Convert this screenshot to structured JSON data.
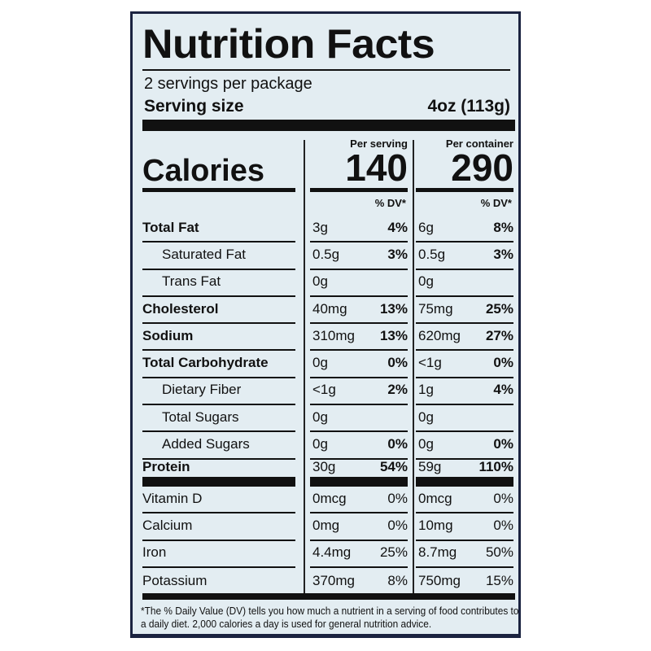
{
  "title": "Nutrition Facts",
  "servings_per_package": "2 servings per package",
  "serving_size_label": "Serving size",
  "serving_size_value": "4oz (113g)",
  "calories_label": "Calories",
  "per_serving_label": "Per serving",
  "per_container_label": "Per container",
  "calories_per_serving": "140",
  "calories_per_container": "290",
  "dv_header": "% DV*",
  "nutrients": [
    {
      "name": "Total Fat",
      "bold": true,
      "indent": false,
      "s_amt": "3g",
      "s_dv": "4%",
      "c_amt": "6g",
      "c_dv": "8%"
    },
    {
      "name": "Saturated Fat",
      "bold": false,
      "indent": true,
      "s_amt": "0.5g",
      "s_dv": "3%",
      "c_amt": "0.5g",
      "c_dv": "3%"
    },
    {
      "name": "Trans Fat",
      "bold": false,
      "indent": true,
      "s_amt": "0g",
      "s_dv": "",
      "c_amt": "0g",
      "c_dv": ""
    },
    {
      "name": "Cholesterol",
      "bold": true,
      "indent": false,
      "s_amt": "40mg",
      "s_dv": "13%",
      "c_amt": "75mg",
      "c_dv": "25%"
    },
    {
      "name": "Sodium",
      "bold": true,
      "indent": false,
      "s_amt": "310mg",
      "s_dv": "13%",
      "c_amt": "620mg",
      "c_dv": "27%"
    },
    {
      "name": "Total Carbohydrate",
      "bold": true,
      "indent": false,
      "s_amt": "0g",
      "s_dv": "0%",
      "c_amt": "<1g",
      "c_dv": "0%"
    },
    {
      "name": "Dietary Fiber",
      "bold": false,
      "indent": true,
      "s_amt": "<1g",
      "s_dv": "2%",
      "c_amt": "1g",
      "c_dv": "4%"
    },
    {
      "name": "Total Sugars",
      "bold": false,
      "indent": true,
      "s_amt": "0g",
      "s_dv": "",
      "c_amt": "0g",
      "c_dv": ""
    },
    {
      "name": "Added Sugars",
      "bold": false,
      "indent": true,
      "s_amt": "0g",
      "s_dv": "0%",
      "c_amt": "0g",
      "c_dv": "0%"
    },
    {
      "name": "Protein",
      "bold": true,
      "indent": false,
      "thick": true,
      "s_amt": "30g",
      "s_dv": "54%",
      "c_amt": "59g",
      "c_dv": "110%"
    }
  ],
  "vitamins": [
    {
      "name": "Vitamin D",
      "s_amt": "0mcg",
      "s_dv": "0%",
      "c_amt": "0mcg",
      "c_dv": "0%"
    },
    {
      "name": "Calcium",
      "s_amt": "0mg",
      "s_dv": "0%",
      "c_amt": "10mg",
      "c_dv": "0%"
    },
    {
      "name": "Iron",
      "s_amt": "4.4mg",
      "s_dv": "25%",
      "c_amt": "8.7mg",
      "c_dv": "50%"
    },
    {
      "name": "Potassium",
      "s_amt": "370mg",
      "s_dv": "8%",
      "c_amt": "750mg",
      "c_dv": "15%"
    }
  ],
  "footnote": "*The % Daily Value (DV) tells you how much a nutrient in a serving of food contributes to a daily diet. 2,000 calories a day is used for general nutrition advice."
}
